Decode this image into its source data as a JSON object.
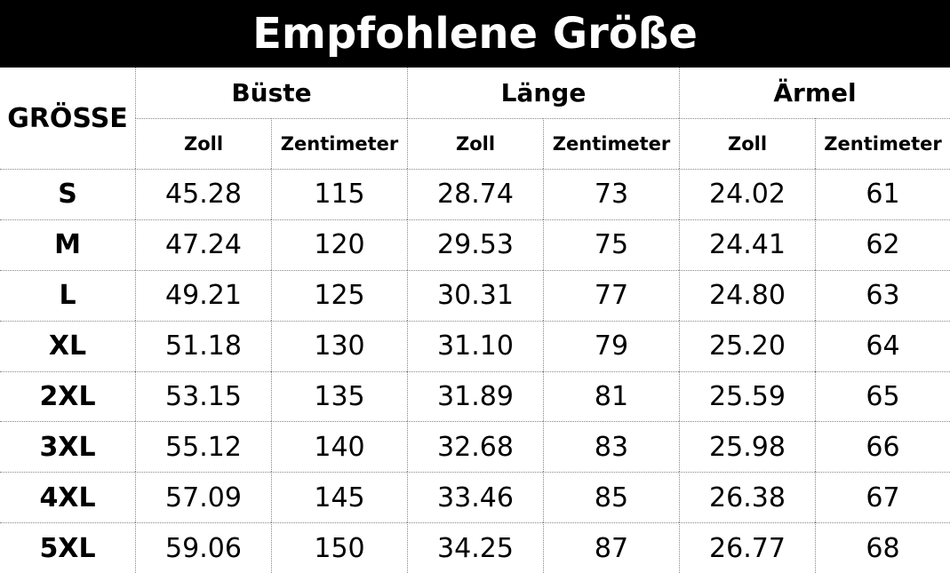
{
  "header": {
    "title": "Empfohlene Größe"
  },
  "table": {
    "size_header": "GRÖSSE",
    "groups": [
      "Büste",
      "Länge",
      "Ärmel"
    ],
    "units": [
      "Zoll",
      "Zentimeter",
      "Zoll",
      "Zentimeter",
      "Zoll",
      "Zentimeter"
    ],
    "rows": [
      [
        "S",
        "45.28",
        "115",
        "28.74",
        "73",
        "24.02",
        "61"
      ],
      [
        "M",
        "47.24",
        "120",
        "29.53",
        "75",
        "24.41",
        "62"
      ],
      [
        "L",
        "49.21",
        "125",
        "30.31",
        "77",
        "24.80",
        "63"
      ],
      [
        "XL",
        "51.18",
        "130",
        "31.10",
        "79",
        "25.20",
        "64"
      ],
      [
        "2XL",
        "53.15",
        "135",
        "31.89",
        "81",
        "25.59",
        "65"
      ],
      [
        "3XL",
        "55.12",
        "140",
        "32.68",
        "83",
        "25.98",
        "66"
      ],
      [
        "4XL",
        "57.09",
        "145",
        "33.46",
        "85",
        "26.38",
        "67"
      ],
      [
        "5XL",
        "59.06",
        "150",
        "34.25",
        "87",
        "26.77",
        "68"
      ]
    ]
  }
}
